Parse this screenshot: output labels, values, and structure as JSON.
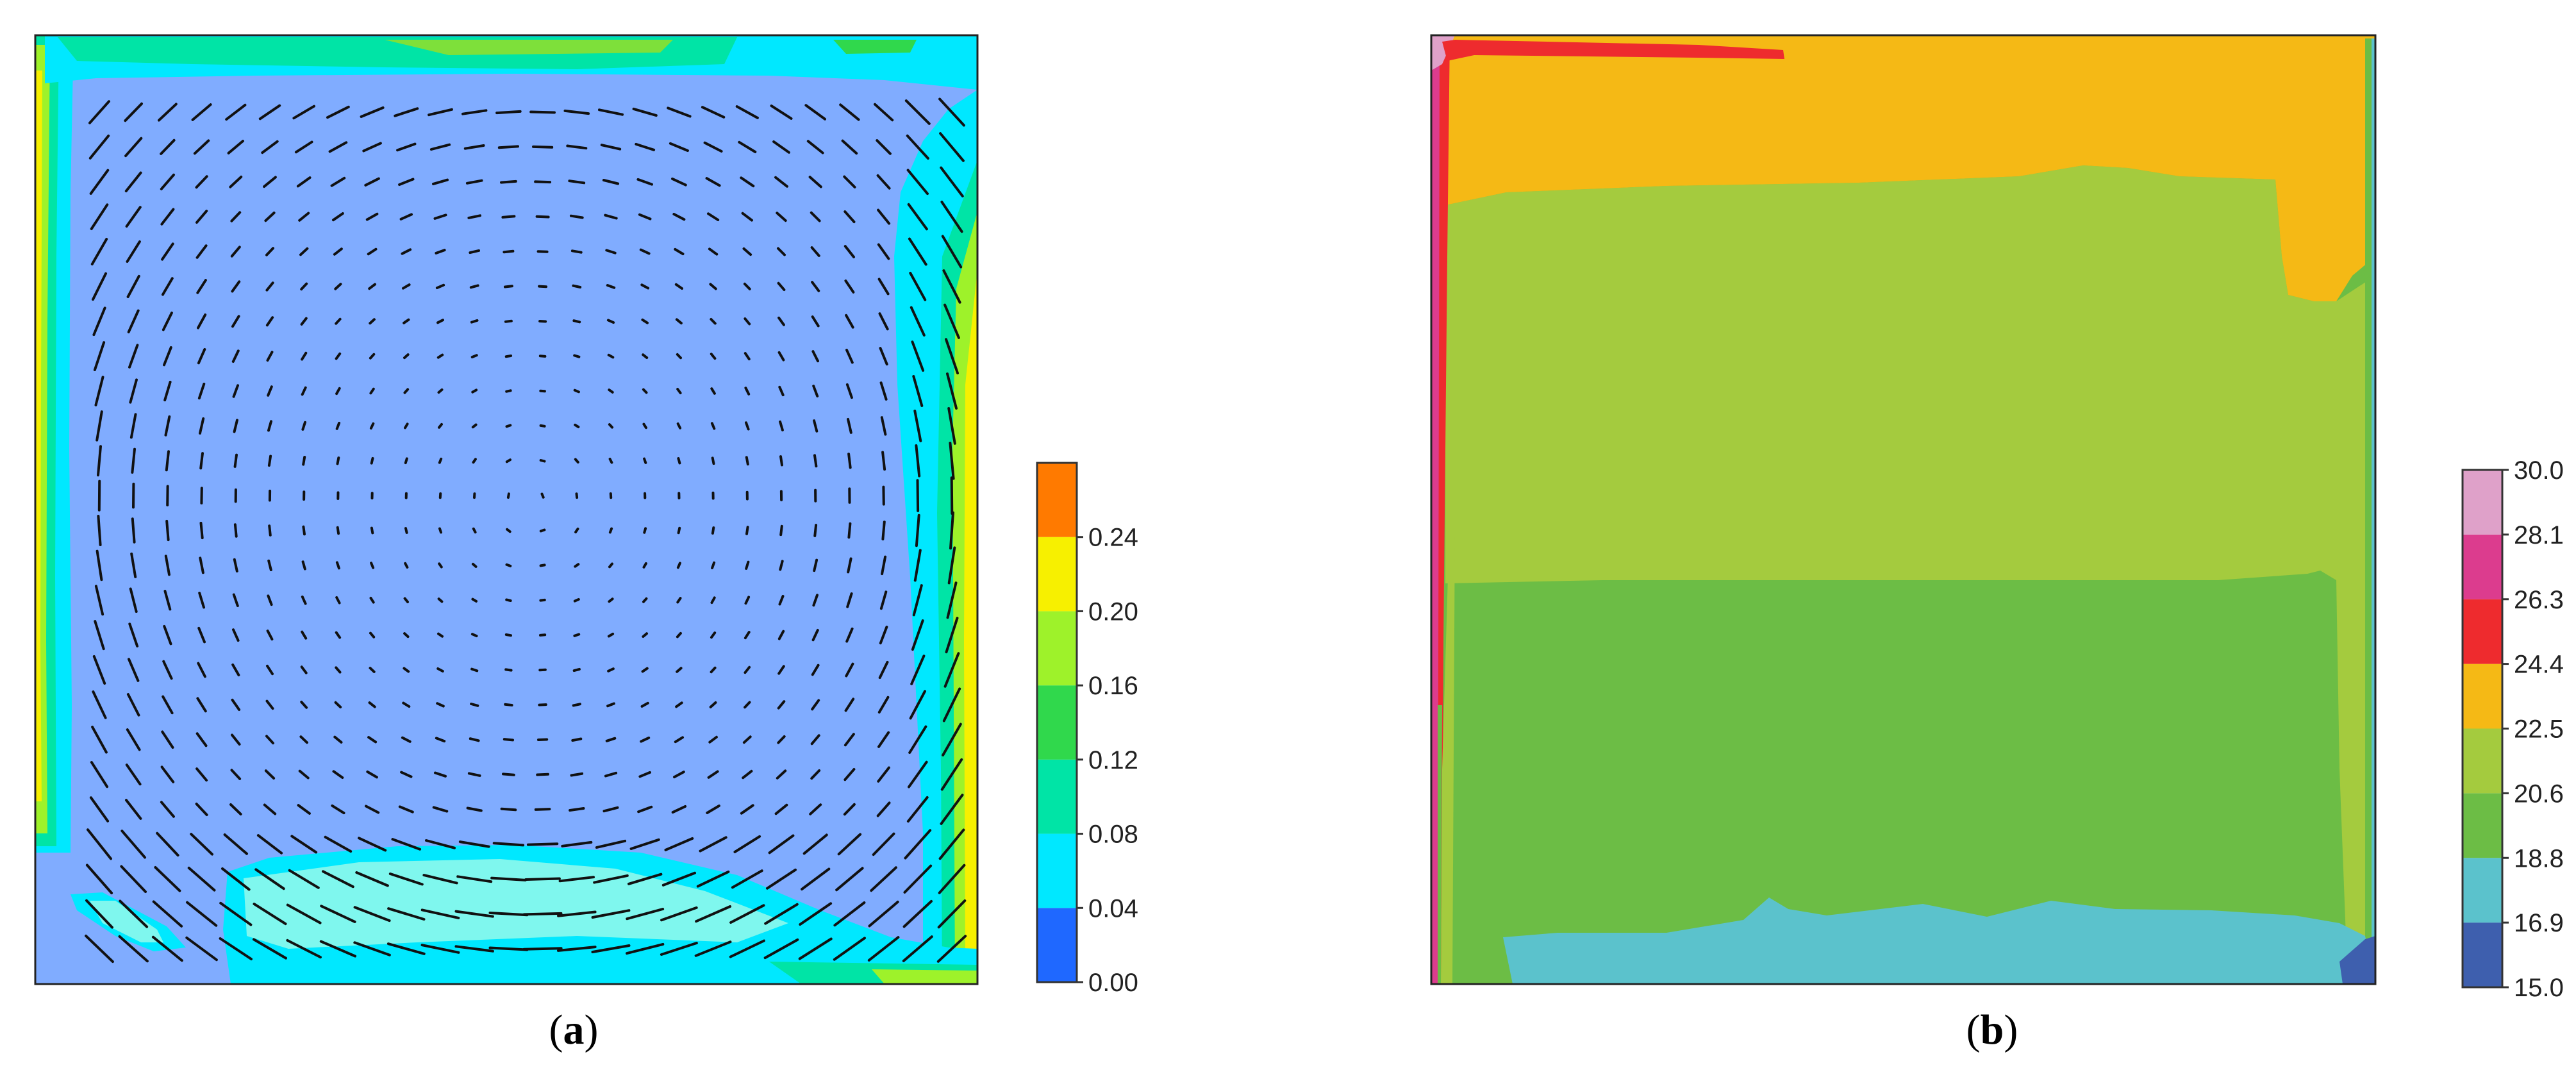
{
  "chart_data": [
    {
      "type": "heatmap",
      "panel": "a",
      "caption_paren_open": "(",
      "caption_letter": "a",
      "caption_paren_close": ")",
      "title": "",
      "xlabel": "",
      "ylabel": "",
      "grid": false,
      "overlay": "velocity vectors (quiver)",
      "colorbar": {
        "placement": "right",
        "ticks": [
          "0.00",
          "0.04",
          "0.08",
          "0.12",
          "0.16",
          "0.20",
          "0.24"
        ],
        "bands": [
          {
            "from": 0.0,
            "to": 0.04,
            "color": "#1f68ff"
          },
          {
            "from": 0.04,
            "to": 0.08,
            "color": "#00e8ff"
          },
          {
            "from": 0.08,
            "to": 0.12,
            "color": "#00e4a6"
          },
          {
            "from": 0.12,
            "to": 0.16,
            "color": "#30d84c"
          },
          {
            "from": 0.16,
            "to": 0.2,
            "color": "#9ef22a"
          },
          {
            "from": 0.2,
            "to": 0.24,
            "color": "#f7f000"
          },
          {
            "from": 0.24,
            "to": 0.28,
            "color": "#ff7a00"
          }
        ]
      },
      "background_color": "#80acff",
      "regions": [
        {
          "name": "left-wall-boundary-layer",
          "range": [
            0.04,
            0.2
          ]
        },
        {
          "name": "top-wall-boundary-layer",
          "range": [
            0.04,
            0.16
          ]
        },
        {
          "name": "right-wall-boundary-layer",
          "range": [
            0.04,
            0.2
          ]
        },
        {
          "name": "floor-jet",
          "range": [
            0.04,
            0.08
          ]
        }
      ]
    },
    {
      "type": "heatmap",
      "panel": "b",
      "caption_paren_open": "(",
      "caption_letter": "b",
      "caption_paren_close": ")",
      "title": "",
      "xlabel": "",
      "ylabel": "",
      "grid": false,
      "colorbar": {
        "placement": "right",
        "ticks": [
          "15.0",
          "16.9",
          "18.8",
          "20.6",
          "22.5",
          "24.4",
          "26.3",
          "28.1",
          "30.0"
        ],
        "bands": [
          {
            "from": 15.0,
            "to": 16.9,
            "color": "#3e5fae"
          },
          {
            "from": 16.9,
            "to": 18.8,
            "color": "#5bc2cc"
          },
          {
            "from": 18.8,
            "to": 20.6,
            "color": "#6cbd45"
          },
          {
            "from": 20.6,
            "to": 22.5,
            "color": "#a4cb3e"
          },
          {
            "from": 22.5,
            "to": 24.4,
            "color": "#f5b915"
          },
          {
            "from": 24.4,
            "to": 26.3,
            "color": "#ee2b2e"
          },
          {
            "from": 26.3,
            "to": 28.1,
            "color": "#dc3c8e"
          },
          {
            "from": 28.1,
            "to": 30.0,
            "color": "#dfa1c9"
          }
        ]
      },
      "regions": [
        {
          "name": "upper-zone",
          "range": [
            22.5,
            24.4
          ]
        },
        {
          "name": "middle-zone",
          "range": [
            20.6,
            22.5
          ]
        },
        {
          "name": "lower-zone",
          "range": [
            18.8,
            20.6
          ]
        },
        {
          "name": "floor-zone",
          "range": [
            16.9,
            18.8
          ]
        },
        {
          "name": "hot-left-wall",
          "range": [
            24.4,
            28.1
          ]
        },
        {
          "name": "cold-corner",
          "range": [
            15.0,
            16.9
          ]
        }
      ]
    }
  ]
}
